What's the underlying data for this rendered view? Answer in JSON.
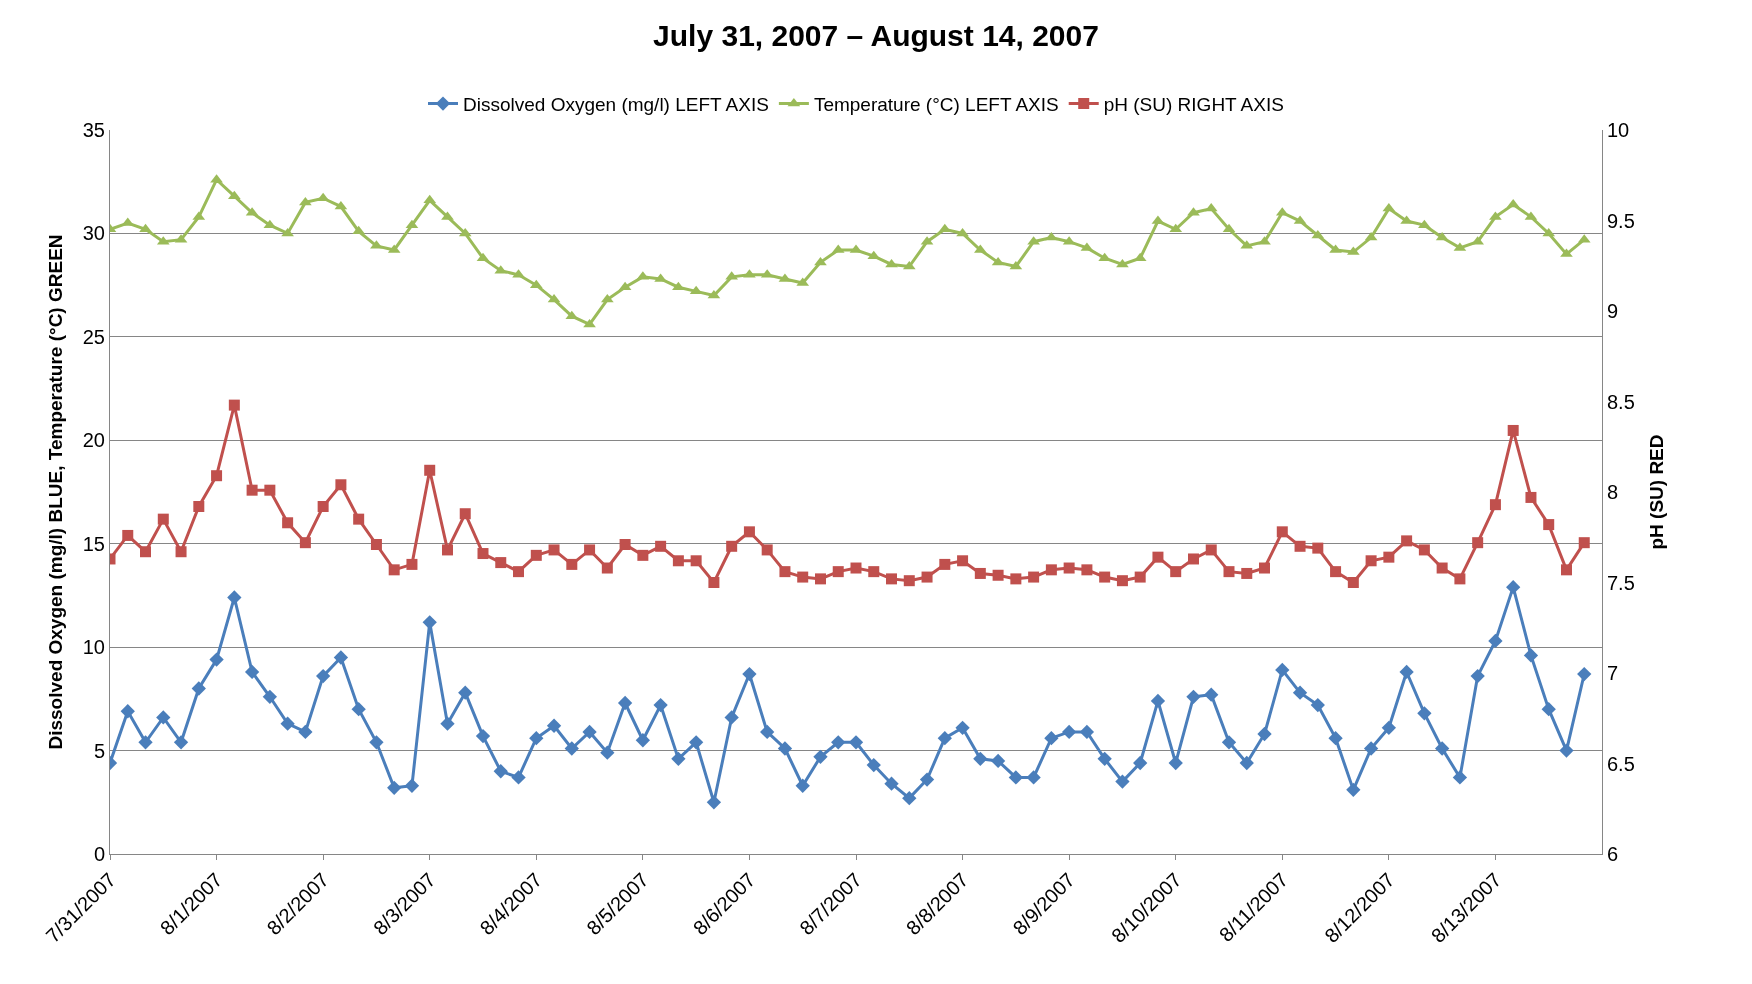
{
  "chart_data": {
    "type": "line",
    "title": "July 31, 2007 – August 14, 2007",
    "ylabel": "Dissolved Oxygen (mg/l) BLUE, Temperature (°C) GREEN",
    "y2label": "pH (SU) RED",
    "x": [
      "2007-07-31T00:00",
      "2007-07-31T04:00",
      "2007-07-31T08:00",
      "2007-07-31T12:00",
      "2007-07-31T16:00",
      "2007-07-31T20:00",
      "2007-08-01T00:00",
      "2007-08-01T04:00",
      "2007-08-01T08:00",
      "2007-08-01T12:00",
      "2007-08-01T16:00",
      "2007-08-01T20:00",
      "2007-08-02T00:00",
      "2007-08-02T04:00",
      "2007-08-02T08:00",
      "2007-08-02T12:00",
      "2007-08-02T16:00",
      "2007-08-02T20:00",
      "2007-08-03T00:00",
      "2007-08-03T04:00",
      "2007-08-03T08:00",
      "2007-08-03T12:00",
      "2007-08-03T16:00",
      "2007-08-03T20:00",
      "2007-08-04T00:00",
      "2007-08-04T04:00",
      "2007-08-04T08:00",
      "2007-08-04T12:00",
      "2007-08-04T16:00",
      "2007-08-04T20:00",
      "2007-08-05T00:00",
      "2007-08-05T04:00",
      "2007-08-05T08:00",
      "2007-08-05T12:00",
      "2007-08-05T16:00",
      "2007-08-05T20:00",
      "2007-08-06T00:00",
      "2007-08-06T04:00",
      "2007-08-06T08:00",
      "2007-08-06T12:00",
      "2007-08-06T16:00",
      "2007-08-06T20:00",
      "2007-08-07T00:00",
      "2007-08-07T04:00",
      "2007-08-07T08:00",
      "2007-08-07T12:00",
      "2007-08-07T16:00",
      "2007-08-07T20:00",
      "2007-08-08T00:00",
      "2007-08-08T04:00",
      "2007-08-08T08:00",
      "2007-08-08T12:00",
      "2007-08-08T16:00",
      "2007-08-08T20:00",
      "2007-08-09T00:00",
      "2007-08-09T04:00",
      "2007-08-09T08:00",
      "2007-08-09T12:00",
      "2007-08-09T16:00",
      "2007-08-09T20:00",
      "2007-08-10T00:00",
      "2007-08-10T04:00",
      "2007-08-10T08:00",
      "2007-08-10T12:00",
      "2007-08-10T16:00",
      "2007-08-10T20:00",
      "2007-08-11T00:00",
      "2007-08-11T04:00",
      "2007-08-11T08:00",
      "2007-08-11T12:00",
      "2007-08-11T16:00",
      "2007-08-11T20:00",
      "2007-08-12T00:00",
      "2007-08-12T04:00",
      "2007-08-12T08:00",
      "2007-08-12T12:00",
      "2007-08-12T16:00",
      "2007-08-12T20:00",
      "2007-08-13T00:00",
      "2007-08-13T04:00",
      "2007-08-13T08:00",
      "2007-08-13T12:00",
      "2007-08-13T16:00",
      "2007-08-13T20:00"
    ],
    "series": [
      {
        "name": "Dissolved Oxygen (mg/l) LEFT AXIS",
        "color": "#4a7ebb",
        "marker": "diamond",
        "values": [
          4.4,
          6.9,
          5.4,
          6.6,
          5.4,
          8.0,
          9.4,
          12.4,
          8.8,
          7.6,
          6.3,
          5.9,
          8.6,
          9.5,
          7.0,
          5.4,
          3.2,
          3.3,
          11.2,
          6.3,
          7.8,
          5.7,
          4.0,
          3.7,
          5.6,
          6.2,
          5.1,
          5.9,
          4.9,
          7.3,
          5.5,
          7.2,
          4.6,
          5.4,
          2.5,
          6.6,
          8.7,
          5.9,
          5.1,
          3.3,
          4.7,
          5.4,
          5.4,
          4.3,
          3.4,
          2.7,
          3.6,
          5.6,
          6.1,
          4.6,
          4.5,
          3.7,
          3.7,
          5.6,
          5.9,
          5.9,
          4.6,
          3.5,
          4.4,
          7.4,
          4.4,
          7.6,
          7.7,
          5.4,
          4.4,
          5.8,
          8.9,
          7.8,
          7.2,
          5.6,
          3.1,
          5.1,
          6.1,
          8.8,
          6.8,
          5.1,
          3.7,
          8.6,
          10.3,
          12.9,
          9.6,
          7.0,
          5.0,
          8.7
        ]
      },
      {
        "name": "Temperature (°C) LEFT AXIS",
        "color": "#9bbb59",
        "marker": "triangle",
        "values": [
          30.2,
          30.5,
          30.2,
          29.6,
          29.7,
          30.8,
          32.6,
          31.8,
          31.0,
          30.4,
          30.0,
          31.5,
          31.7,
          31.3,
          30.1,
          29.4,
          29.2,
          30.4,
          31.6,
          30.8,
          30.0,
          28.8,
          28.2,
          28.0,
          27.5,
          26.8,
          26.0,
          25.6,
          26.8,
          27.4,
          27.9,
          27.8,
          27.4,
          27.2,
          27.0,
          27.9,
          28.0,
          28.0,
          27.8,
          27.6,
          28.6,
          29.2,
          29.2,
          28.9,
          28.5,
          28.4,
          29.6,
          30.2,
          30.0,
          29.2,
          28.6,
          28.4,
          29.6,
          29.8,
          29.6,
          29.3,
          28.8,
          28.5,
          28.8,
          30.6,
          30.2,
          31.0,
          31.2,
          30.2,
          29.4,
          29.6,
          31.0,
          30.6,
          29.9,
          29.2,
          29.1,
          29.8,
          31.2,
          30.6,
          30.4,
          29.8,
          29.3,
          29.6,
          30.8,
          31.4,
          30.8,
          30.0,
          29.0,
          29.7
        ]
      },
      {
        "name": "pH (SU) RIGHT AXIS",
        "color": "#c0504d",
        "marker": "square",
        "axis": "y2",
        "values": [
          7.63,
          7.76,
          7.67,
          7.85,
          7.67,
          7.92,
          8.09,
          8.48,
          8.01,
          8.01,
          7.83,
          7.72,
          7.92,
          8.04,
          7.85,
          7.71,
          7.57,
          7.6,
          8.12,
          7.68,
          7.88,
          7.66,
          7.61,
          7.56,
          7.65,
          7.68,
          7.6,
          7.68,
          7.58,
          7.71,
          7.65,
          7.7,
          7.62,
          7.62,
          7.5,
          7.7,
          7.78,
          7.68,
          7.56,
          7.53,
          7.52,
          7.56,
          7.58,
          7.56,
          7.52,
          7.51,
          7.53,
          7.6,
          7.62,
          7.55,
          7.54,
          7.52,
          7.53,
          7.57,
          7.58,
          7.57,
          7.53,
          7.51,
          7.53,
          7.64,
          7.56,
          7.63,
          7.68,
          7.56,
          7.55,
          7.58,
          7.78,
          7.7,
          7.69,
          7.56,
          7.5,
          7.62,
          7.64,
          7.73,
          7.68,
          7.58,
          7.52,
          7.72,
          7.93,
          8.34,
          7.97,
          7.82,
          7.57,
          7.72
        ]
      }
    ],
    "ylim": [
      0,
      35
    ],
    "yticks": [
      0,
      5,
      10,
      15,
      20,
      25,
      30,
      35
    ],
    "y2lim": [
      6,
      10
    ],
    "y2ticks": [
      6,
      6.5,
      7,
      7.5,
      8,
      8.5,
      9,
      9.5,
      10
    ],
    "xlim": [
      "2007-07-31T00:00",
      "2007-08-14T00:00"
    ],
    "xticks": [
      {
        "value": "2007-07-31",
        "label": "7/31/2007"
      },
      {
        "value": "2007-08-01",
        "label": "8/1/2007"
      },
      {
        "value": "2007-08-02",
        "label": "8/2/2007"
      },
      {
        "value": "2007-08-03",
        "label": "8/3/2007"
      },
      {
        "value": "2007-08-04",
        "label": "8/4/2007"
      },
      {
        "value": "2007-08-05",
        "label": "8/5/2007"
      },
      {
        "value": "2007-08-06",
        "label": "8/6/2007"
      },
      {
        "value": "2007-08-07",
        "label": "8/7/2007"
      },
      {
        "value": "2007-08-08",
        "label": "8/8/2007"
      },
      {
        "value": "2007-08-09",
        "label": "8/9/2007"
      },
      {
        "value": "2007-08-10",
        "label": "8/10/2007"
      },
      {
        "value": "2007-08-11",
        "label": "8/11/2007"
      },
      {
        "value": "2007-08-12",
        "label": "8/12/2007"
      },
      {
        "value": "2007-08-13",
        "label": "8/13/2007"
      }
    ],
    "grid": "y",
    "legend": "top",
    "line_style": "solid"
  }
}
